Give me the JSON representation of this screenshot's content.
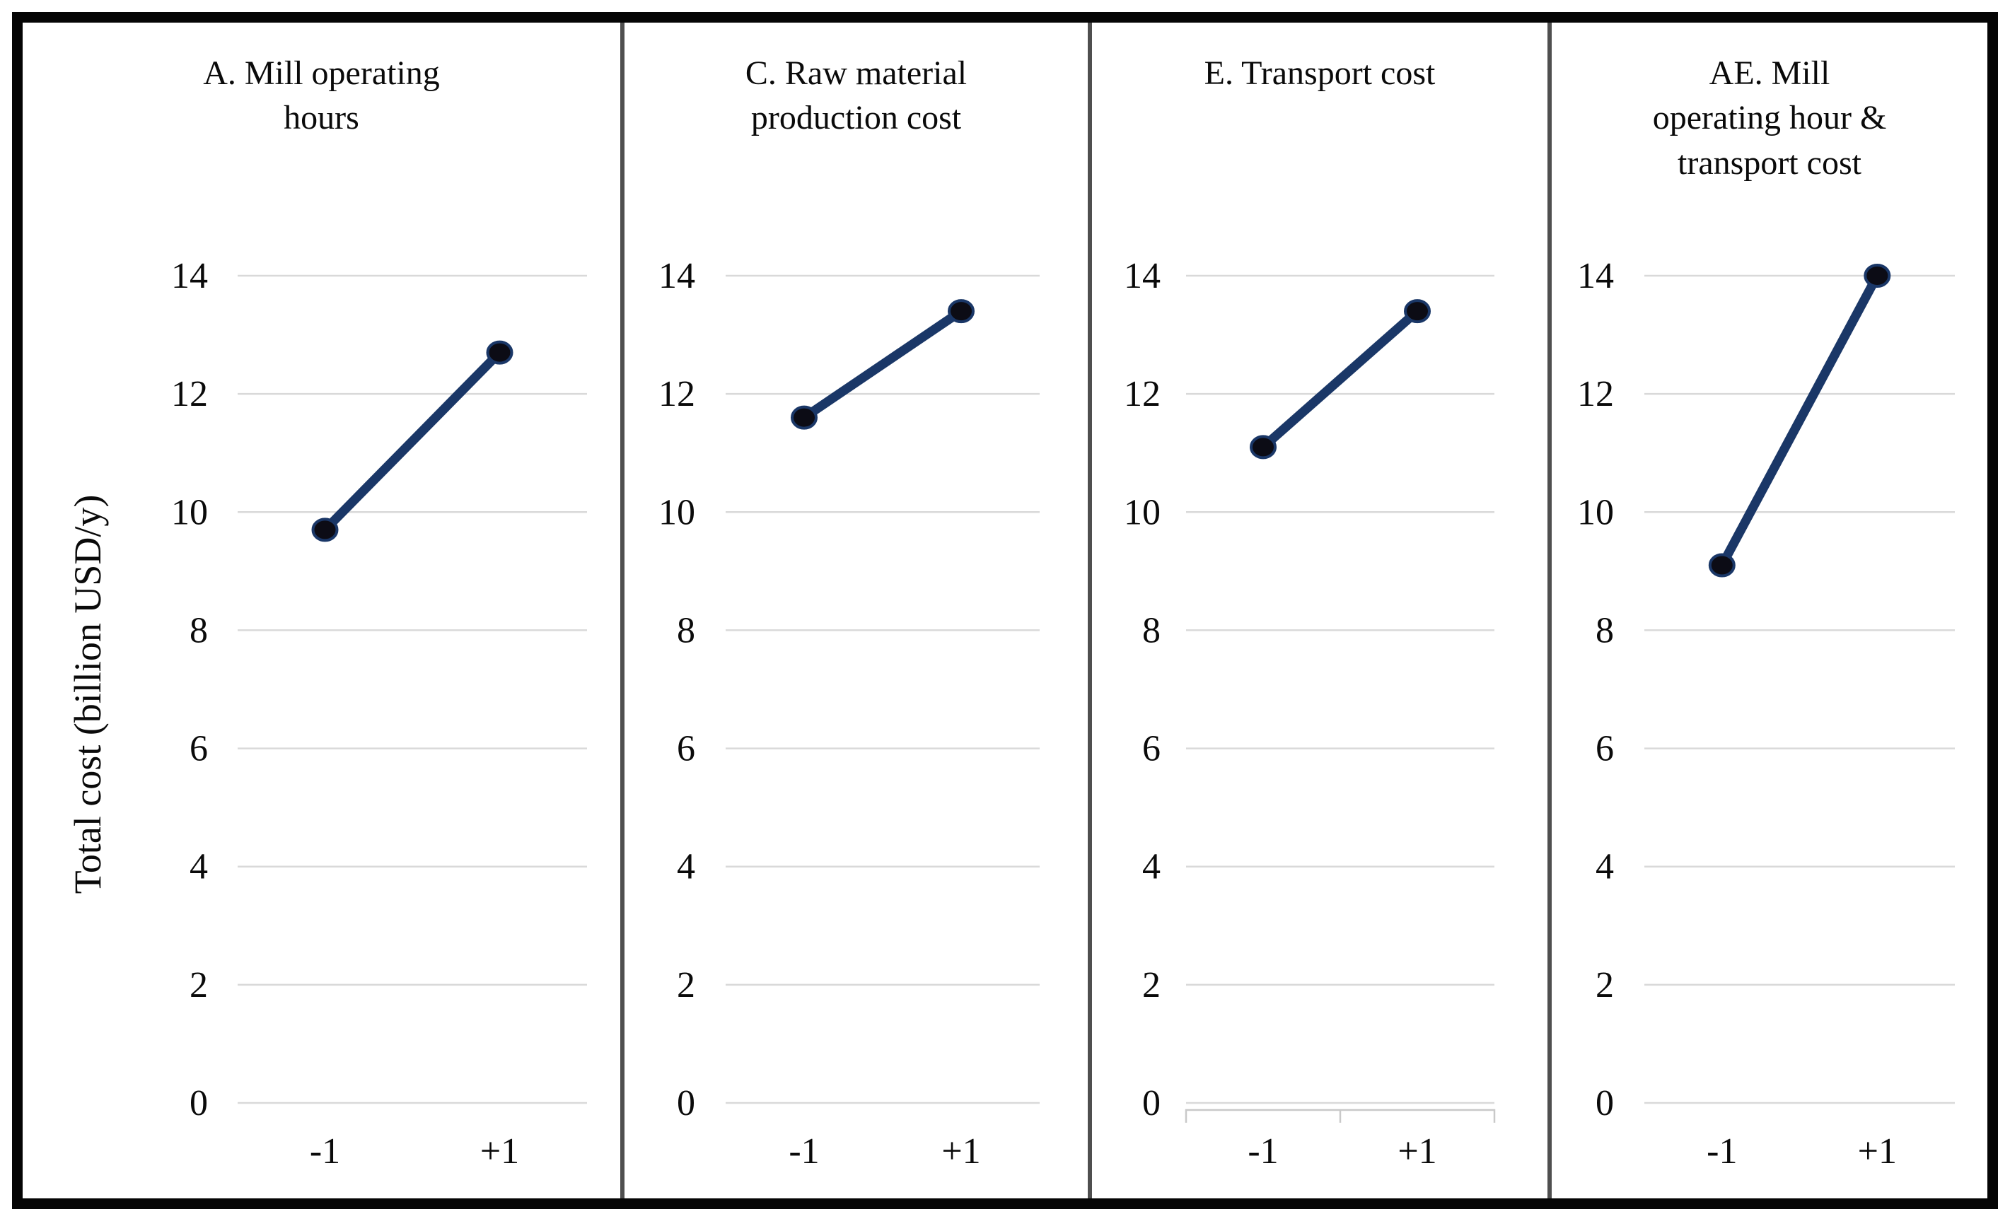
{
  "figure": {
    "y_axis_label": "Total cost (billion USD/y)",
    "x_tick_labels": [
      "-1",
      "+1"
    ],
    "y_tick_labels": [
      "0",
      "2",
      "4",
      "6",
      "8",
      "10",
      "12",
      "14"
    ],
    "colors": {
      "line": "#1a3767",
      "marker": "#0c0c15",
      "gridline": "#d9d9d9",
      "axis_bracket": "#c9c9c9",
      "panel_divider": "#4f4f4f",
      "outer_border": "#050505",
      "text": "#0a0a0a",
      "background": "#ffffff"
    }
  },
  "chart_data": [
    {
      "type": "line",
      "title": "A. Mill operating\nhours",
      "categories": [
        "-1",
        "+1"
      ],
      "values": [
        9.7,
        12.7
      ],
      "ylabel": "Total cost (billion USD/y)",
      "ylim": [
        0,
        14
      ],
      "y_ticks": [
        0,
        2,
        4,
        6,
        8,
        10,
        12,
        14
      ],
      "grid": "horizontal",
      "legend": "none"
    },
    {
      "type": "line",
      "title": "C. Raw material\nproduction cost",
      "categories": [
        "-1",
        "+1"
      ],
      "values": [
        11.6,
        13.4
      ],
      "ylabel": "Total cost (billion USD/y)",
      "ylim": [
        0,
        14
      ],
      "y_ticks": [
        0,
        2,
        4,
        6,
        8,
        10,
        12,
        14
      ],
      "grid": "horizontal",
      "legend": "none"
    },
    {
      "type": "line",
      "title": "E. Transport cost",
      "categories": [
        "-1",
        "+1"
      ],
      "values": [
        11.1,
        13.4
      ],
      "ylabel": "Total cost (billion USD/y)",
      "ylim": [
        0,
        14
      ],
      "y_ticks": [
        0,
        2,
        4,
        6,
        8,
        10,
        12,
        14
      ],
      "grid": "horizontal",
      "has_axis_tick_bracket": true,
      "legend": "none"
    },
    {
      "type": "line",
      "title": "AE. Mill\noperating hour &\ntransport cost",
      "categories": [
        "-1",
        "+1"
      ],
      "values": [
        9.1,
        14.0
      ],
      "ylabel": "Total cost (billion USD/y)",
      "ylim": [
        0,
        14
      ],
      "y_ticks": [
        0,
        2,
        4,
        6,
        8,
        10,
        12,
        14
      ],
      "grid": "horizontal",
      "legend": "none"
    }
  ]
}
